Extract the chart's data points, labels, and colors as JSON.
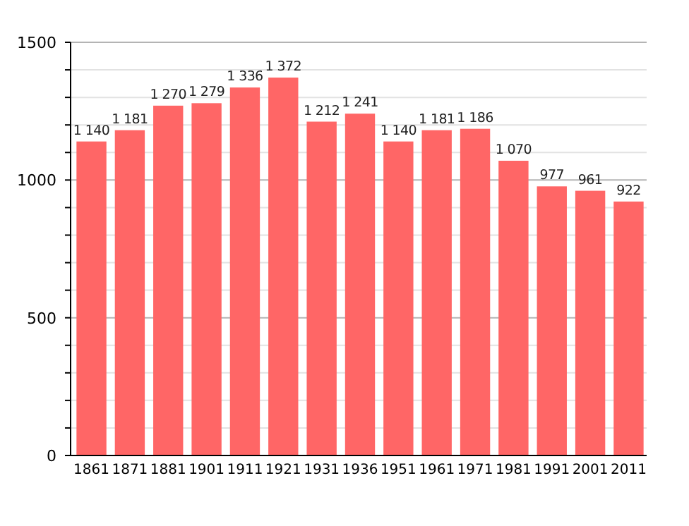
{
  "chart_data": {
    "type": "bar",
    "categories": [
      "1861",
      "1871",
      "1881",
      "1901",
      "1911",
      "1921",
      "1931",
      "1936",
      "1951",
      "1961",
      "1971",
      "1981",
      "1991",
      "2001",
      "2011"
    ],
    "values": [
      1140,
      1181,
      1270,
      1279,
      1336,
      1372,
      1212,
      1241,
      1140,
      1181,
      1186,
      1070,
      977,
      961,
      922
    ],
    "value_labels": [
      "1 140",
      "1 181",
      "1 270",
      "1 279",
      "1 336",
      "1 372",
      "1 212",
      "1 241",
      "1 140",
      "1 181",
      "1 186",
      "1 070",
      "977",
      "961",
      "922"
    ],
    "color": "#ff6666",
    "ylim": [
      0,
      1500
    ],
    "yticks": [
      0,
      {
        "value": 100,
        "label": null
      },
      {
        "value": 200,
        "label": null
      },
      {
        "value": 300,
        "label": null
      },
      {
        "value": 400,
        "label": null
      },
      500,
      {
        "value": 600,
        "label": null
      },
      {
        "value": 700,
        "label": null
      },
      {
        "value": 800,
        "label": null
      },
      {
        "value": 900,
        "label": null
      },
      1000,
      {
        "value": 1100,
        "label": null
      },
      {
        "value": 1200,
        "label": null
      },
      {
        "value": 1300,
        "label": null
      },
      {
        "value": 1400,
        "label": null
      },
      1500
    ],
    "grid": true
  }
}
